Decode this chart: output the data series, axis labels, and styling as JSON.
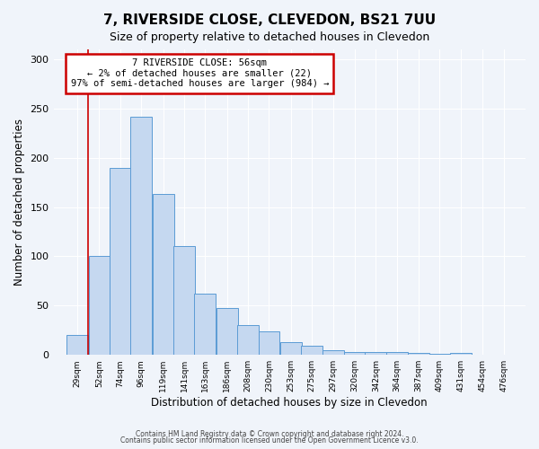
{
  "title": "7, RIVERSIDE CLOSE, CLEVEDON, BS21 7UU",
  "subtitle": "Size of property relative to detached houses in Clevedon",
  "xlabel": "Distribution of detached houses by size in Clevedon",
  "ylabel": "Number of detached properties",
  "bar_values": [
    20,
    100,
    190,
    242,
    163,
    110,
    62,
    48,
    30,
    24,
    13,
    9,
    5,
    3,
    3,
    3,
    2,
    1,
    2
  ],
  "bin_labels": [
    "29sqm",
    "52sqm",
    "74sqm",
    "96sqm",
    "119sqm",
    "141sqm",
    "163sqm",
    "186sqm",
    "208sqm",
    "230sqm",
    "253sqm",
    "275sqm",
    "297sqm",
    "320sqm",
    "342sqm",
    "364sqm",
    "387sqm",
    "409sqm",
    "431sqm",
    "454sqm",
    "476sqm"
  ],
  "bar_color": "#c5d8f0",
  "bar_edge_color": "#5b9bd5",
  "ylim": [
    0,
    310
  ],
  "yticks": [
    0,
    50,
    100,
    150,
    200,
    250,
    300
  ],
  "property_line_x": 52,
  "annotation_title": "7 RIVERSIDE CLOSE: 56sqm",
  "annotation_line1": "← 2% of detached houses are smaller (22)",
  "annotation_line2": "97% of semi-detached houses are larger (984) →",
  "annotation_box_color": "#cc0000",
  "footer_line1": "Contains HM Land Registry data © Crown copyright and database right 2024.",
  "footer_line2": "Contains public sector information licensed under the Open Government Licence v3.0.",
  "bin_edges": [
    29,
    52,
    74,
    96,
    119,
    141,
    163,
    186,
    208,
    230,
    253,
    275,
    297,
    320,
    342,
    364,
    387,
    409,
    431,
    454,
    476
  ],
  "background_color": "#f0f4fa",
  "grid_color": "#ffffff"
}
